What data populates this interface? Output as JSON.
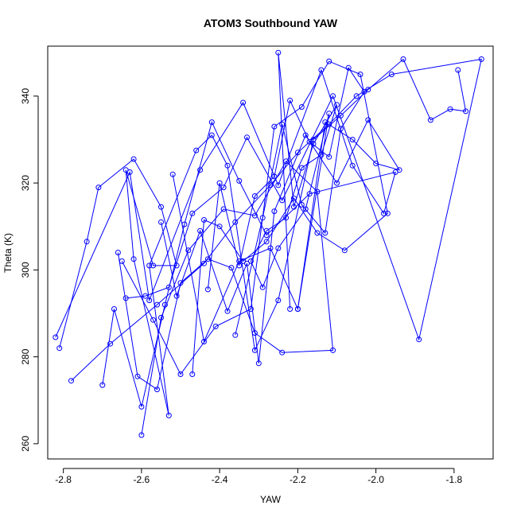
{
  "chart_data": {
    "type": "line",
    "title": "ATOM3 Southbound YAW",
    "xlabel": "YAW",
    "ylabel": "Theta (K)",
    "xlim": [
      -2.84,
      -1.7
    ],
    "ylim": [
      256.5,
      351.5
    ],
    "xticks": [
      -2.8,
      -2.6,
      -2.4,
      -2.2,
      -2.0,
      -1.8
    ],
    "xtick_labels": [
      "-2.8",
      "-2.6",
      "-2.4",
      "-2.2",
      "-2.0",
      "-1.8"
    ],
    "yticks": [
      260,
      280,
      300,
      320,
      340
    ],
    "ytick_labels": [
      "260",
      "280",
      "300",
      "320",
      "340"
    ],
    "grid": false,
    "color": "#0000ff",
    "markers": "open-circle",
    "series": [
      {
        "x": [
          -2.81,
          -2.74,
          -2.71,
          -2.62,
          -2.55,
          -2.51,
          -2.57,
          -2.64,
          -2.62,
          -2.53,
          -2.58,
          -2.46,
          -2.42,
          -2.38,
          -2.31,
          -2.25,
          -2.16,
          -2.09,
          -2.02,
          -1.93,
          -1.86,
          -1.81,
          -1.77,
          -1.79
        ],
        "y": [
          282,
          306.5,
          319,
          325.5,
          314.5,
          301,
          301,
          323,
          302.5,
          266.5,
          301,
          327.5,
          331,
          324,
          281.5,
          293,
          330,
          335.5,
          341.5,
          348.5,
          334.5,
          337,
          336.5,
          346
        ]
      },
      {
        "x": [
          -2.78,
          -2.68,
          -2.56,
          -2.44,
          -2.36,
          -2.27,
          -2.2,
          -2.12,
          -2.05,
          -1.96,
          -1.73,
          -1.89,
          -2.11,
          -2.24,
          -2.33,
          -2.39,
          -2.47,
          -2.53,
          -2.59,
          -2.64
        ],
        "y": [
          274.5,
          283,
          292,
          301.5,
          311,
          319.5,
          327,
          333.5,
          340,
          345,
          348.5,
          284,
          340,
          316,
          330.5,
          319,
          313,
          296,
          294,
          293.5
        ]
      },
      {
        "x": [
          -2.82,
          -2.63,
          -2.58,
          -2.45,
          -2.34,
          -2.25,
          -2.14,
          -2.06,
          -1.98,
          -1.95,
          -2.17,
          -2.28,
          -2.35,
          -2.42,
          -2.49,
          -2.54,
          -2.6,
          -2.67,
          -2.7
        ],
        "y": [
          284.5,
          322.5,
          293,
          323,
          338.5,
          319.5,
          346,
          324,
          313,
          322.5,
          317.5,
          308,
          320.5,
          334,
          310.5,
          292,
          268.5,
          291,
          273.5
        ]
      },
      {
        "x": [
          -2.6,
          -2.55,
          -2.48,
          -2.39,
          -2.31,
          -2.23,
          -2.15,
          -2.11,
          -2.24,
          -2.31,
          -2.37,
          -2.43,
          -2.5,
          -2.56,
          -2.61,
          -2.66
        ],
        "y": [
          262,
          289,
          304.5,
          314,
          312.5,
          325,
          318,
          281.5,
          281,
          285.5,
          300.5,
          302.5,
          297,
          272.5,
          275.5,
          304
        ],
        "name": ""
      },
      {
        "x": [
          -2.65,
          -2.57,
          -2.5,
          -2.41,
          -2.32,
          -2.26,
          -2.19,
          -2.12,
          -2.04,
          -1.97,
          -2.08,
          -2.15,
          -2.21,
          -2.28,
          -2.34,
          -2.4,
          -2.44,
          -2.47
        ],
        "y": [
          302,
          288.5,
          276,
          287,
          291,
          333,
          337.5,
          348,
          345,
          313,
          304.5,
          308.5,
          316.5,
          306.5,
          302,
          310,
          311.5,
          276
        ],
        "name": ""
      },
      {
        "x": [
          -2.52,
          -2.44,
          -2.35,
          -2.27,
          -2.2,
          -2.13,
          -2.06,
          -2.0,
          -1.94,
          -2.02,
          -2.1,
          -2.18,
          -2.26,
          -2.3,
          -2.33,
          -2.38,
          -2.45,
          -2.51,
          -2.55
        ],
        "y": [
          322,
          283.5,
          302,
          305,
          291,
          334,
          330,
          324.5,
          323,
          334.5,
          320,
          331,
          313.5,
          278.5,
          301.5,
          290.5,
          309,
          294,
          311
        ],
        "name": ""
      },
      {
        "x": [
          -2.36,
          -2.29,
          -2.24,
          -2.19,
          -2.13,
          -2.09,
          -2.03,
          -2.07,
          -2.12,
          -2.17,
          -2.22,
          -2.26,
          -2.31,
          -2.35,
          -2.4,
          -2.43
        ],
        "y": [
          285,
          312,
          333.5,
          315,
          308.5,
          332.5,
          341,
          346.5,
          326,
          329.5,
          339,
          321.5,
          317,
          301,
          320,
          295.5
        ],
        "name": ""
      },
      {
        "x": [
          -2.22,
          -2.25,
          -2.21,
          -2.16,
          -2.1,
          -2.14,
          -2.19,
          -2.23,
          -2.28,
          -2.32,
          -2.29,
          -2.25,
          -2.18,
          -2.12,
          -2.2
        ],
        "y": [
          291,
          350,
          314.5,
          329,
          338,
          326.5,
          323.5,
          312,
          309,
          302,
          296,
          305,
          314,
          336,
          291
        ]
      }
    ]
  }
}
